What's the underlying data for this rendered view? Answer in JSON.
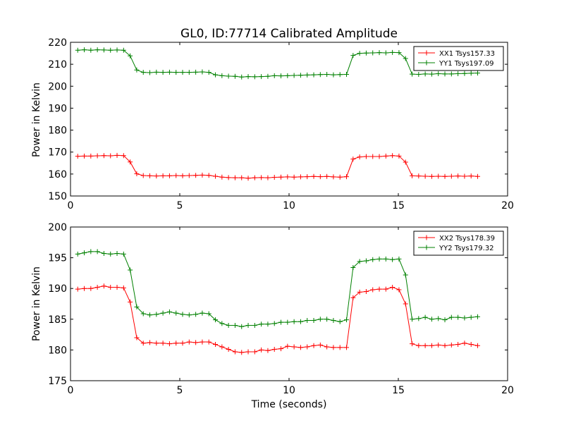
{
  "title": "GL0, ID:77714 Calibrated Amplitude",
  "colors": {
    "red": "#ff0000",
    "green": "#008000",
    "axis": "#000000"
  },
  "chart_data": [
    {
      "type": "line",
      "title": "GL0, ID:77714 Calibrated Amplitude",
      "xlabel": "",
      "ylabel": "Power in Kelvin",
      "xlim": [
        0,
        20
      ],
      "ylim": [
        150,
        220
      ],
      "x_ticks": [
        0,
        5,
        10,
        15,
        20
      ],
      "y_ticks": [
        150,
        160,
        170,
        180,
        190,
        200,
        210,
        220
      ],
      "grid": false,
      "legend_position": "top-right",
      "marker": "+",
      "x": [
        0.33,
        0.63,
        0.93,
        1.23,
        1.53,
        1.83,
        2.13,
        2.43,
        2.73,
        3.03,
        3.33,
        3.63,
        3.93,
        4.23,
        4.53,
        4.83,
        5.13,
        5.43,
        5.73,
        6.03,
        6.33,
        6.63,
        6.93,
        7.23,
        7.53,
        7.83,
        8.13,
        8.43,
        8.73,
        9.03,
        9.33,
        9.63,
        9.93,
        10.23,
        10.53,
        10.83,
        11.13,
        11.43,
        11.73,
        12.03,
        12.33,
        12.63,
        12.93,
        13.23,
        13.53,
        13.83,
        14.13,
        14.43,
        14.73,
        15.03,
        15.33,
        15.63,
        15.93,
        16.23,
        16.53,
        16.83,
        17.13,
        17.43,
        17.73,
        18.03,
        18.33,
        18.63
      ],
      "series": [
        {
          "name": "XX1 Tsys157.33",
          "color": "#ff0000",
          "values": [
            168.1,
            168.2,
            168.2,
            168.3,
            168.4,
            168.3,
            168.5,
            168.4,
            165.5,
            160.1,
            159.3,
            159.2,
            159.1,
            159.2,
            159.2,
            159.3,
            159.2,
            159.3,
            159.4,
            159.5,
            159.4,
            159.0,
            158.6,
            158.4,
            158.3,
            158.3,
            158.1,
            158.3,
            158.4,
            158.3,
            158.5,
            158.6,
            158.7,
            158.6,
            158.7,
            158.8,
            158.9,
            158.8,
            158.9,
            158.7,
            158.6,
            158.8,
            166.8,
            167.8,
            168.0,
            168.0,
            168.0,
            168.2,
            168.4,
            168.2,
            165.4,
            159.2,
            159.1,
            159.0,
            158.9,
            159.0,
            158.9,
            159.0,
            159.1,
            159.0,
            159.1,
            158.9
          ]
        },
        {
          "name": "YY1 Tsys197.09",
          "color": "#008000",
          "values": [
            216.4,
            216.6,
            216.4,
            216.6,
            216.5,
            216.4,
            216.5,
            216.4,
            213.8,
            207.4,
            206.3,
            206.2,
            206.4,
            206.3,
            206.4,
            206.3,
            206.3,
            206.3,
            206.4,
            206.5,
            206.3,
            205.2,
            204.8,
            204.6,
            204.5,
            204.2,
            204.4,
            204.3,
            204.4,
            204.5,
            204.8,
            204.7,
            204.8,
            204.9,
            205.0,
            205.1,
            205.2,
            205.3,
            205.4,
            205.2,
            205.3,
            205.4,
            214.0,
            215.0,
            215.1,
            215.2,
            215.3,
            215.2,
            215.4,
            215.3,
            212.6,
            205.5,
            205.4,
            205.6,
            205.5,
            205.7,
            205.6,
            205.6,
            205.7,
            205.8,
            205.9,
            206.0
          ]
        }
      ]
    },
    {
      "type": "line",
      "title": "",
      "xlabel": "Time (seconds)",
      "ylabel": "Power in Kelvin",
      "xlim": [
        0,
        20
      ],
      "ylim": [
        175,
        200
      ],
      "x_ticks": [
        0,
        5,
        10,
        15,
        20
      ],
      "y_ticks": [
        175,
        180,
        185,
        190,
        195,
        200
      ],
      "grid": false,
      "legend_position": "top-right",
      "marker": "+",
      "x": [
        0.33,
        0.63,
        0.93,
        1.23,
        1.53,
        1.83,
        2.13,
        2.43,
        2.73,
        3.03,
        3.33,
        3.63,
        3.93,
        4.23,
        4.53,
        4.83,
        5.13,
        5.43,
        5.73,
        6.03,
        6.33,
        6.63,
        6.93,
        7.23,
        7.53,
        7.83,
        8.13,
        8.43,
        8.73,
        9.03,
        9.33,
        9.63,
        9.93,
        10.23,
        10.53,
        10.83,
        11.13,
        11.43,
        11.73,
        12.03,
        12.33,
        12.63,
        12.93,
        13.23,
        13.53,
        13.83,
        14.13,
        14.43,
        14.73,
        15.03,
        15.33,
        15.63,
        15.93,
        16.23,
        16.53,
        16.83,
        17.13,
        17.43,
        17.73,
        18.03,
        18.33,
        18.63
      ],
      "series": [
        {
          "name": "XX2 Tsys178.39",
          "color": "#ff0000",
          "values": [
            189.9,
            190.0,
            190.0,
            190.2,
            190.4,
            190.2,
            190.2,
            190.1,
            187.8,
            182.0,
            181.1,
            181.2,
            181.1,
            181.1,
            181.0,
            181.1,
            181.1,
            181.3,
            181.2,
            181.3,
            181.3,
            180.9,
            180.5,
            180.1,
            179.7,
            179.6,
            179.7,
            179.7,
            180.0,
            179.9,
            180.1,
            180.2,
            180.6,
            180.5,
            180.4,
            180.5,
            180.7,
            180.8,
            180.5,
            180.4,
            180.4,
            180.4,
            188.5,
            189.4,
            189.5,
            189.8,
            189.9,
            189.9,
            190.2,
            189.8,
            187.5,
            181.0,
            180.7,
            180.7,
            180.7,
            180.8,
            180.7,
            180.8,
            180.9,
            181.1,
            180.9,
            180.7
          ]
        },
        {
          "name": "YY2 Tsys179.32",
          "color": "#008000",
          "values": [
            195.6,
            195.8,
            196.0,
            196.0,
            195.7,
            195.6,
            195.7,
            195.6,
            193.0,
            187.0,
            185.9,
            185.7,
            185.8,
            186.0,
            186.2,
            186.0,
            185.8,
            185.7,
            185.8,
            186.0,
            185.9,
            184.9,
            184.3,
            184.0,
            184.0,
            183.8,
            184.0,
            184.0,
            184.2,
            184.2,
            184.3,
            184.5,
            184.5,
            184.6,
            184.6,
            184.8,
            184.8,
            185.0,
            185.0,
            184.8,
            184.6,
            184.9,
            193.4,
            194.4,
            194.5,
            194.7,
            194.8,
            194.8,
            194.7,
            194.8,
            192.2,
            185.0,
            185.1,
            185.3,
            185.0,
            185.1,
            184.9,
            185.3,
            185.3,
            185.2,
            185.3,
            185.4
          ]
        }
      ]
    }
  ]
}
